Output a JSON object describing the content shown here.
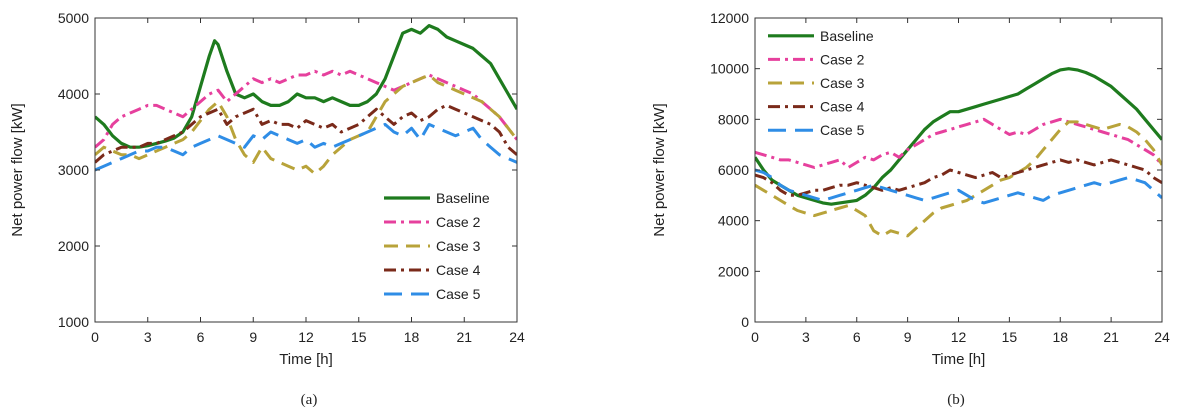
{
  "chart_data": [
    {
      "type": "line",
      "panel_label": "(a)",
      "xlabel": "Time [h]",
      "ylabel": "Net power flow [kW]",
      "xlim": [
        0,
        24
      ],
      "ylim": [
        1000,
        5000
      ],
      "xticks": [
        0,
        3,
        6,
        9,
        12,
        15,
        18,
        21,
        24
      ],
      "yticks": [
        1000,
        2000,
        3000,
        4000,
        5000
      ],
      "grid": false,
      "legend_position": "bottom-right",
      "series": [
        {
          "name": "Baseline",
          "color": "#1e7b1e",
          "dash": "solid",
          "width": 3.2,
          "x": [
            0,
            0.5,
            1,
            1.5,
            2,
            2.5,
            3,
            3.5,
            4,
            4.5,
            5,
            5.5,
            6,
            6.5,
            6.8,
            7,
            7.5,
            8,
            8.5,
            9,
            9.5,
            10,
            10.5,
            11,
            11.5,
            12,
            12.5,
            13,
            13.5,
            14,
            14.5,
            15,
            15.5,
            16,
            16.5,
            17,
            17.5,
            18,
            18.5,
            19,
            19.5,
            20,
            20.5,
            21,
            21.5,
            22,
            22.5,
            23,
            23.5,
            24
          ],
          "y": [
            3700,
            3600,
            3450,
            3350,
            3300,
            3300,
            3320,
            3350,
            3380,
            3420,
            3500,
            3700,
            4100,
            4500,
            4700,
            4650,
            4300,
            4000,
            3950,
            4000,
            3900,
            3850,
            3850,
            3900,
            4000,
            3950,
            3950,
            3900,
            3950,
            3900,
            3850,
            3850,
            3900,
            4000,
            4200,
            4500,
            4800,
            4850,
            4800,
            4900,
            4850,
            4750,
            4700,
            4650,
            4600,
            4500,
            4400,
            4200,
            4000,
            3800
          ]
        },
        {
          "name": "Case 2",
          "color": "#e6409d",
          "dash": "dashdot",
          "width": 3,
          "x": [
            0,
            0.5,
            1,
            1.5,
            2,
            2.5,
            3,
            3.5,
            4,
            4.5,
            5,
            5.5,
            6,
            6.5,
            7,
            7.5,
            8,
            8.5,
            9,
            9.5,
            10,
            10.5,
            11,
            11.5,
            12,
            12.5,
            13,
            13.5,
            14,
            14.5,
            15,
            15.5,
            16,
            16.5,
            17,
            17.5,
            18,
            18.5,
            19,
            19.5,
            20,
            20.5,
            21,
            21.5,
            22,
            22.5,
            23,
            23.5,
            24
          ],
          "y": [
            3300,
            3400,
            3600,
            3700,
            3750,
            3800,
            3850,
            3850,
            3800,
            3750,
            3700,
            3800,
            3900,
            4000,
            4050,
            3900,
            4000,
            4100,
            4200,
            4150,
            4200,
            4150,
            4200,
            4250,
            4250,
            4300,
            4250,
            4300,
            4250,
            4300,
            4250,
            4200,
            4150,
            4100,
            4050,
            4100,
            4150,
            4200,
            4250,
            4200,
            4150,
            4100,
            4050,
            4000,
            3900,
            3800,
            3700,
            3550,
            3400
          ]
        },
        {
          "name": "Case 3",
          "color": "#b8a33a",
          "dash": "dash",
          "width": 3,
          "x": [
            0,
            0.5,
            1,
            1.5,
            2,
            2.5,
            3,
            3.5,
            4,
            4.5,
            5,
            5.5,
            6,
            6.5,
            7,
            7.5,
            8,
            8.5,
            9,
            9.5,
            10,
            10.5,
            11,
            11.5,
            12,
            12.5,
            13,
            13.5,
            14,
            14.5,
            15,
            15.5,
            16,
            16.5,
            17,
            17.5,
            18,
            18.5,
            19,
            19.5,
            20,
            20.5,
            21,
            21.5,
            22,
            22.5,
            23,
            23.5,
            24
          ],
          "y": [
            3200,
            3300,
            3250,
            3200,
            3200,
            3150,
            3200,
            3250,
            3300,
            3350,
            3400,
            3500,
            3650,
            3800,
            3900,
            3700,
            3400,
            3200,
            3100,
            3300,
            3150,
            3100,
            3050,
            3000,
            3050,
            2950,
            3050,
            3200,
            3300,
            3400,
            3450,
            3500,
            3700,
            3900,
            4000,
            4100,
            4150,
            4200,
            4250,
            4150,
            4100,
            4050,
            4000,
            3950,
            3900,
            3800,
            3700,
            3550,
            3400
          ]
        },
        {
          "name": "Case 4",
          "color": "#7a2a1a",
          "dash": "dashdot",
          "width": 3,
          "x": [
            0,
            0.5,
            1,
            1.5,
            2,
            2.5,
            3,
            3.5,
            4,
            4.5,
            5,
            5.5,
            6,
            6.5,
            7,
            7.5,
            8,
            8.5,
            9,
            9.5,
            10,
            10.5,
            11,
            11.5,
            12,
            12.5,
            13,
            13.5,
            14,
            14.5,
            15,
            15.5,
            16,
            16.5,
            17,
            17.5,
            18,
            18.5,
            19,
            19.5,
            20,
            20.5,
            21,
            21.5,
            22,
            22.5,
            23,
            23.5,
            24
          ],
          "y": [
            3100,
            3200,
            3250,
            3300,
            3300,
            3300,
            3350,
            3350,
            3400,
            3450,
            3500,
            3600,
            3700,
            3750,
            3800,
            3600,
            3700,
            3750,
            3800,
            3600,
            3650,
            3600,
            3600,
            3550,
            3650,
            3600,
            3550,
            3600,
            3500,
            3550,
            3600,
            3700,
            3800,
            3700,
            3600,
            3700,
            3750,
            3650,
            3700,
            3800,
            3850,
            3800,
            3750,
            3700,
            3650,
            3600,
            3500,
            3300,
            3200
          ]
        },
        {
          "name": "Case 5",
          "color": "#2f8de6",
          "dash": "longdash",
          "width": 3,
          "x": [
            0,
            0.5,
            1,
            1.5,
            2,
            2.5,
            3,
            3.5,
            4,
            4.5,
            5,
            5.5,
            6,
            6.5,
            7,
            7.5,
            8,
            8.5,
            9,
            9.5,
            10,
            10.5,
            11,
            11.5,
            12,
            12.5,
            13,
            13.5,
            14,
            14.5,
            15,
            15.5,
            16,
            16.5,
            17,
            17.5,
            18,
            18.5,
            19,
            19.5,
            20,
            20.5,
            21,
            21.5,
            22,
            22.5,
            23,
            23.5,
            24
          ],
          "y": [
            3000,
            3050,
            3100,
            3150,
            3200,
            3250,
            3250,
            3300,
            3300,
            3250,
            3200,
            3300,
            3350,
            3400,
            3450,
            3400,
            3350,
            3300,
            3450,
            3400,
            3500,
            3450,
            3400,
            3350,
            3400,
            3300,
            3350,
            3300,
            3350,
            3400,
            3450,
            3500,
            3550,
            3600,
            3500,
            3450,
            3550,
            3400,
            3600,
            3550,
            3500,
            3450,
            3500,
            3550,
            3400,
            3300,
            3200,
            3150,
            3100
          ]
        }
      ]
    },
    {
      "type": "line",
      "panel_label": "(b)",
      "xlabel": "Time [h]",
      "ylabel": "Net power flow [kW]",
      "xlim": [
        0,
        24
      ],
      "ylim": [
        0,
        12000
      ],
      "xticks": [
        0,
        3,
        6,
        9,
        12,
        15,
        18,
        21,
        24
      ],
      "yticks": [
        0,
        2000,
        4000,
        6000,
        8000,
        10000,
        12000
      ],
      "grid": false,
      "legend_position": "top-left",
      "series": [
        {
          "name": "Baseline",
          "color": "#1e7b1e",
          "dash": "solid",
          "width": 3.2,
          "x": [
            0,
            0.5,
            1,
            1.5,
            2,
            2.5,
            3,
            3.5,
            4,
            4.5,
            5,
            5.5,
            6,
            6.5,
            7,
            7.5,
            8,
            8.5,
            9,
            9.5,
            10,
            10.5,
            11,
            11.5,
            12,
            12.5,
            13,
            13.5,
            14,
            14.5,
            15,
            15.5,
            16,
            16.5,
            17,
            17.5,
            18,
            18.5,
            19,
            19.5,
            20,
            20.5,
            21,
            21.5,
            22,
            22.5,
            23,
            23.5,
            24
          ],
          "y": [
            6500,
            6000,
            5600,
            5400,
            5200,
            5000,
            4900,
            4800,
            4700,
            4650,
            4700,
            4750,
            4800,
            5000,
            5300,
            5700,
            6000,
            6400,
            6800,
            7200,
            7600,
            7900,
            8100,
            8300,
            8300,
            8400,
            8500,
            8600,
            8700,
            8800,
            8900,
            9000,
            9200,
            9400,
            9600,
            9800,
            9950,
            10000,
            9950,
            9850,
            9700,
            9500,
            9300,
            9000,
            8700,
            8400,
            8000,
            7600,
            7200
          ]
        },
        {
          "name": "Case 2",
          "color": "#e6409d",
          "dash": "dashdot",
          "width": 3,
          "x": [
            0,
            0.5,
            1,
            1.5,
            2,
            2.5,
            3,
            3.5,
            4,
            4.5,
            5,
            5.5,
            6,
            6.5,
            7,
            7.5,
            8,
            8.5,
            9,
            9.5,
            10,
            10.5,
            11,
            11.5,
            12,
            12.5,
            13,
            13.5,
            14,
            14.5,
            15,
            15.5,
            16,
            16.5,
            17,
            17.5,
            18,
            18.5,
            19,
            19.5,
            20,
            20.5,
            21,
            21.5,
            22,
            22.5,
            23,
            23.5,
            24
          ],
          "y": [
            6700,
            6600,
            6500,
            6400,
            6400,
            6300,
            6200,
            6100,
            6200,
            6300,
            6400,
            6100,
            6300,
            6500,
            6400,
            6600,
            6700,
            6500,
            6800,
            7000,
            7200,
            7400,
            7500,
            7600,
            7700,
            7800,
            7900,
            8000,
            7800,
            7600,
            7400,
            7500,
            7400,
            7600,
            7800,
            7900,
            8000,
            7900,
            7800,
            7700,
            7600,
            7500,
            7400,
            7300,
            7200,
            7000,
            6800,
            6600,
            6200
          ]
        },
        {
          "name": "Case 3",
          "color": "#b8a33a",
          "dash": "dash",
          "width": 3,
          "x": [
            0,
            0.5,
            1,
            1.5,
            2,
            2.5,
            3,
            3.5,
            4,
            4.5,
            5,
            5.5,
            6,
            6.5,
            7,
            7.5,
            8,
            8.5,
            9,
            9.5,
            10,
            10.5,
            11,
            11.5,
            12,
            12.5,
            13,
            13.5,
            14,
            14.5,
            15,
            15.5,
            16,
            16.5,
            17,
            17.5,
            18,
            18.5,
            19,
            19.5,
            20,
            20.5,
            21,
            21.5,
            22,
            22.5,
            23,
            23.5,
            24
          ],
          "y": [
            5400,
            5200,
            5000,
            4800,
            4600,
            4400,
            4300,
            4200,
            4300,
            4400,
            4500,
            4600,
            4400,
            4200,
            3600,
            3400,
            3600,
            3500,
            3400,
            3700,
            4000,
            4300,
            4500,
            4600,
            4700,
            4800,
            5000,
            5200,
            5400,
            5600,
            5700,
            5900,
            6100,
            6400,
            6800,
            7200,
            7600,
            7900,
            7900,
            7800,
            7700,
            7600,
            7700,
            7800,
            7700,
            7500,
            7200,
            6800,
            6200
          ]
        },
        {
          "name": "Case 4",
          "color": "#7a2a1a",
          "dash": "dashdot",
          "width": 3,
          "x": [
            0,
            0.5,
            1,
            1.5,
            2,
            2.5,
            3,
            3.5,
            4,
            4.5,
            5,
            5.5,
            6,
            6.5,
            7,
            7.5,
            8,
            8.5,
            9,
            9.5,
            10,
            10.5,
            11,
            11.5,
            12,
            12.5,
            13,
            13.5,
            14,
            14.5,
            15,
            15.5,
            16,
            16.5,
            17,
            17.5,
            18,
            18.5,
            19,
            19.5,
            20,
            20.5,
            21,
            21.5,
            22,
            22.5,
            23,
            23.5,
            24
          ],
          "y": [
            5800,
            5700,
            5500,
            5200,
            5000,
            5000,
            5100,
            5200,
            5200,
            5300,
            5400,
            5400,
            5500,
            5400,
            5300,
            5200,
            5300,
            5200,
            5300,
            5400,
            5500,
            5700,
            5800,
            6000,
            5900,
            5800,
            5700,
            5800,
            5900,
            5700,
            5800,
            5900,
            6000,
            6100,
            6200,
            6300,
            6400,
            6300,
            6400,
            6300,
            6200,
            6300,
            6400,
            6300,
            6200,
            6100,
            6000,
            5700,
            5500
          ]
        },
        {
          "name": "Case 5",
          "color": "#2f8de6",
          "dash": "longdash",
          "width": 3,
          "x": [
            0,
            0.5,
            1,
            1.5,
            2,
            2.5,
            3,
            3.5,
            4,
            4.5,
            5,
            5.5,
            6,
            6.5,
            7,
            7.5,
            8,
            8.5,
            9,
            9.5,
            10,
            10.5,
            11,
            11.5,
            12,
            12.5,
            13,
            13.5,
            14,
            14.5,
            15,
            15.5,
            16,
            16.5,
            17,
            17.5,
            18,
            18.5,
            19,
            19.5,
            20,
            20.5,
            21,
            21.5,
            22,
            22.5,
            23,
            23.5,
            24
          ],
          "y": [
            6000,
            5900,
            5700,
            5400,
            5200,
            5100,
            5000,
            4900,
            4800,
            4900,
            5000,
            5100,
            5200,
            5300,
            5400,
            5300,
            5200,
            5100,
            5000,
            4900,
            4800,
            4900,
            5000,
            5100,
            5200,
            5000,
            4800,
            4700,
            4800,
            4900,
            5000,
            5100,
            5000,
            4900,
            4800,
            5000,
            5100,
            5200,
            5300,
            5400,
            5500,
            5400,
            5500,
            5600,
            5700,
            5600,
            5500,
            5200,
            4900
          ]
        }
      ]
    }
  ]
}
